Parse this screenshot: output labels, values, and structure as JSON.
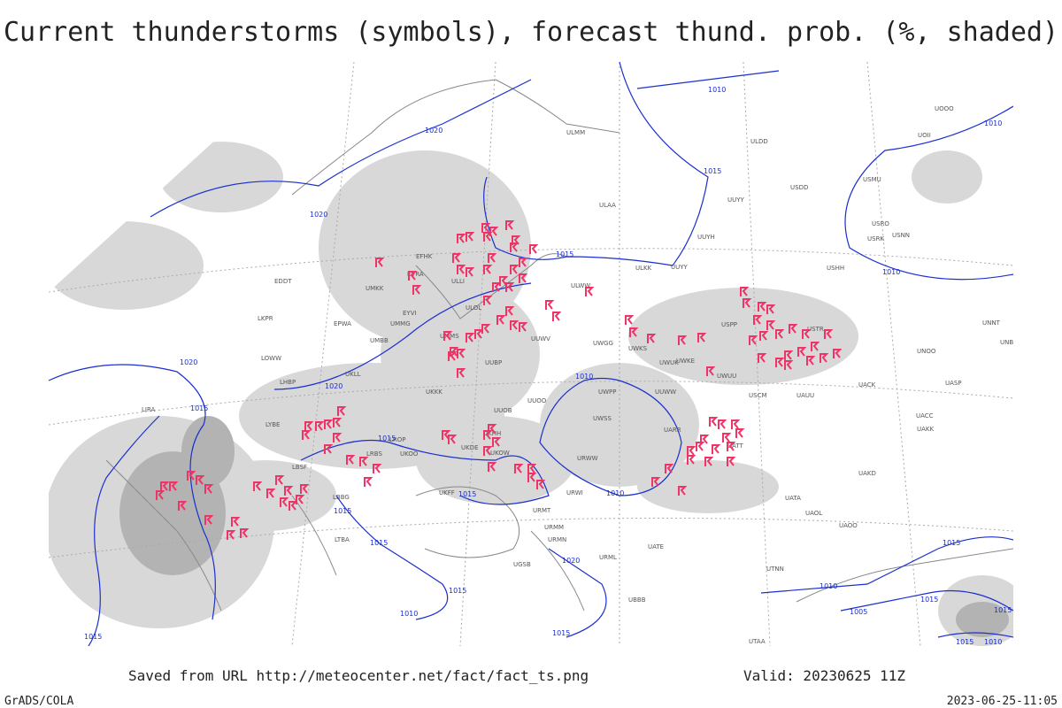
{
  "title": "Current thunderstorms (symbols), forecast thund. prob. (%, shaded)",
  "footer": {
    "source": "Saved from URL http://meteocenter.net/fact/fact_ts.png",
    "valid": "Valid: 20230625 11Z",
    "software": "GrADS/COLA",
    "timestamp": "2023-06-25-11:05"
  },
  "isobar_labels": [
    "1010",
    "1020",
    "1015",
    "1020",
    "1015",
    "1010",
    "1010",
    "1020",
    "1015",
    "1020",
    "1015",
    "1010",
    "1015",
    "1015",
    "1010",
    "1015",
    "1020",
    "1015",
    "1010",
    "1015",
    "1015",
    "1010",
    "1015",
    "1005",
    "1015",
    "1015",
    "1015",
    "1010"
  ],
  "stations": [
    "ULMM",
    "ULAA",
    "ULDD",
    "USDD",
    "UUYY",
    "UUYH",
    "ULKK",
    "UUYY",
    "USHH",
    "ULWW",
    "USPP",
    "USTR",
    "UWKS",
    "UWKE",
    "UWUU",
    "UUWW",
    "UWPP",
    "UUOO",
    "UUOB",
    "UKKK",
    "UKHH",
    "UKDE",
    "UKOW",
    "URWW",
    "URWI",
    "UATT",
    "UARR",
    "UACC",
    "UASP",
    "UACK",
    "UAUU",
    "USCM",
    "UATA",
    "UAOL",
    "UAOO",
    "UAKD",
    "UAKK",
    "UTNN",
    "UTAA",
    "UBBB",
    "URMT",
    "URMM",
    "URMN",
    "URML",
    "UATE",
    "UGSB",
    "UKFF",
    "UKOO",
    "LRBS",
    "LBBG",
    "LHBP",
    "EPWA",
    "EYVI",
    "EVRA",
    "EFHK",
    "ULOL",
    "UMMS",
    "UMMG",
    "UMBB",
    "UMKK",
    "LKPR",
    "LOWW",
    "LYBE",
    "LROP",
    "LTBA",
    "UOOO",
    "UOII",
    "USMU",
    "USRO",
    "USRK",
    "USNN",
    "UNNT",
    "UNBB",
    "UNOO",
    "ULLI",
    "UUWV",
    "UWGG",
    "UWSS",
    "UWUK",
    "UUBP",
    "LIRA",
    "LBSF",
    "UKLL",
    "EDDT"
  ]
}
